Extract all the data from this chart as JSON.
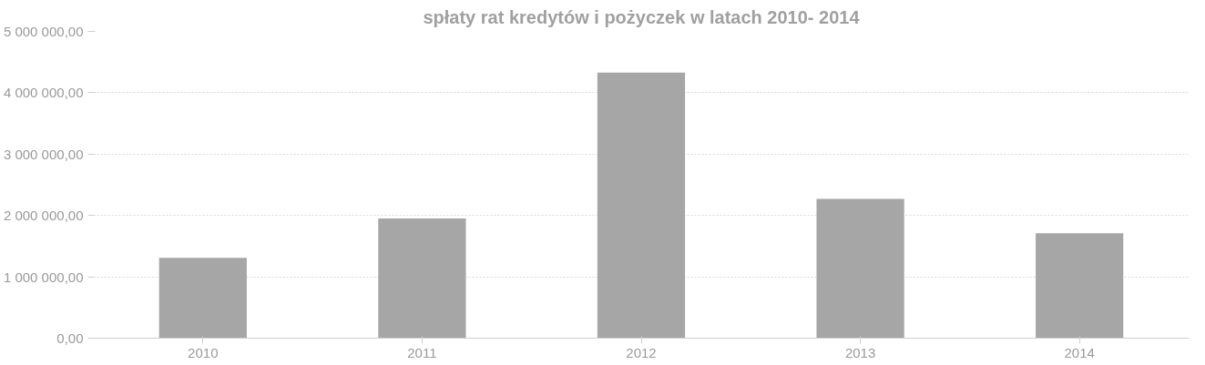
{
  "chart_data": {
    "type": "bar",
    "title": "spłaty rat kredytów i pożyczek w latach 2010- 2014",
    "categories": [
      "2010",
      "2011",
      "2012",
      "2013",
      "2014"
    ],
    "values": [
      1310000,
      1950000,
      4330000,
      2270000,
      1710000
    ],
    "color": "#a6a6a6",
    "ylim": [
      0,
      5000000
    ],
    "yticks": [
      {
        "value": 0,
        "label": "0,00"
      },
      {
        "value": 1000000,
        "label": "1 000 000,00"
      },
      {
        "value": 2000000,
        "label": "2 000 000,00"
      },
      {
        "value": 3000000,
        "label": "3 000 000,00"
      },
      {
        "value": 4000000,
        "label": "4 000 000,00"
      },
      {
        "value": 5000000,
        "label": "5 000 000,00"
      }
    ],
    "grid": "y"
  }
}
